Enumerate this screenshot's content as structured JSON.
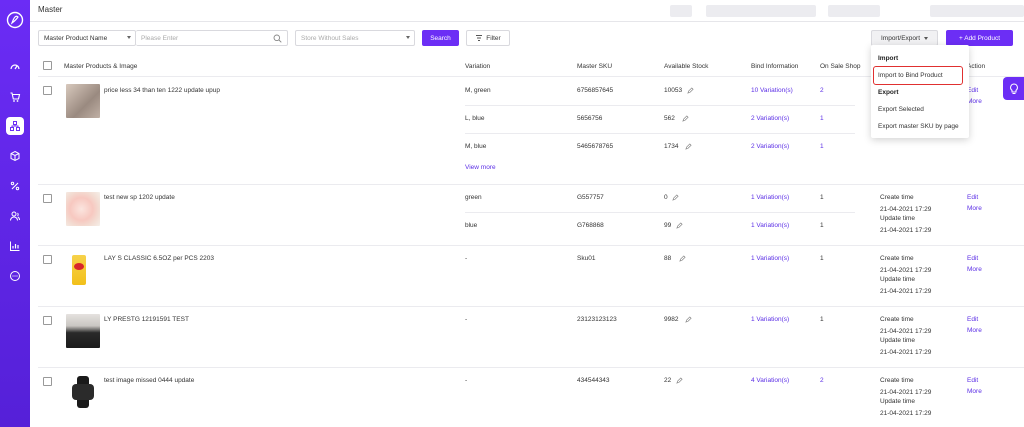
{
  "header": {
    "title": "Master"
  },
  "toolbar": {
    "search_type": "Master Product Name",
    "search_placeholder": "Please Enter",
    "store_placeholder": "Store Without Sales",
    "search_label": "Search",
    "filter_label": "Filter",
    "import_export_label": "Import/Export",
    "add_product_label": "+ Add Product"
  },
  "dropdown": {
    "import_header": "Import",
    "import_bind": "Import to Bind Product",
    "export_header": "Export",
    "export_selected": "Export Selected",
    "export_by_page": "Export master SKU by page"
  },
  "table": {
    "headers": {
      "product": "Master Products & Image",
      "variation": "Variation",
      "sku": "Master SKU",
      "stock": "Available Stock",
      "bind": "Bind Information",
      "shop": "On Sale Shop",
      "action": "Action"
    },
    "labels": {
      "view_more": "View more",
      "create_time": "Create time",
      "update_time": "Update time",
      "edit": "Edit",
      "more": "More"
    },
    "rows": [
      {
        "name": "price less 34 than ten 1222 update upup",
        "variants": [
          {
            "variation": "M, green",
            "sku": "6756857645",
            "stock": "10053",
            "bind": "10 Variation(s)",
            "shop": "2"
          },
          {
            "variation": "L, blue",
            "sku": "5656756",
            "stock": "562",
            "bind": "2 Variation(s)",
            "shop": "1"
          },
          {
            "variation": "M, blue",
            "sku": "5465678765",
            "stock": "1734",
            "bind": "2 Variation(s)",
            "shop": "1"
          }
        ]
      },
      {
        "name": "test new sp 1202 update",
        "create": "21-04-2021 17:29",
        "update": "21-04-2021 17:29",
        "variants": [
          {
            "variation": "green",
            "sku": "G557757",
            "stock": "0",
            "bind": "1 Variation(s)",
            "shop": "1"
          },
          {
            "variation": "blue",
            "sku": "G768868",
            "stock": "99",
            "bind": "1 Variation(s)",
            "shop": "1"
          }
        ]
      },
      {
        "name": "LAY S CLASSIC 6.5OZ per PCS 2203",
        "create": "21-04-2021 17:29",
        "update": "21-04-2021 17:29",
        "variants": [
          {
            "variation": "-",
            "sku": "Sku01",
            "stock": "88",
            "bind": "1 Variation(s)",
            "shop": "1"
          }
        ]
      },
      {
        "name": "LY PRESTG 12191591 TEST",
        "create": "21-04-2021 17:29",
        "update": "21-04-2021 17:29",
        "variants": [
          {
            "variation": "-",
            "sku": "23123123123",
            "stock": "9982",
            "bind": "1 Variation(s)",
            "shop": "1"
          }
        ]
      },
      {
        "name": "test image missed 0444 update",
        "create": "21-04-2021 17:29",
        "update": "21-04-2021 17:29",
        "variants": [
          {
            "variation": "-",
            "sku": "434544343",
            "stock": "22",
            "bind": "4 Variation(s)",
            "shop": "2"
          }
        ]
      }
    ]
  },
  "colors": {
    "accent": "#6c2ef5",
    "link": "#5b2ee6",
    "highlight": "#e03030"
  },
  "icons": [
    "logo-icon",
    "dashboard-icon",
    "cart-icon",
    "product-icon",
    "box-icon",
    "discount-icon",
    "customers-icon",
    "analytics-icon",
    "chat-icon",
    "search-icon",
    "filter-icon",
    "edit-pencil-icon",
    "lightbulb-icon"
  ]
}
